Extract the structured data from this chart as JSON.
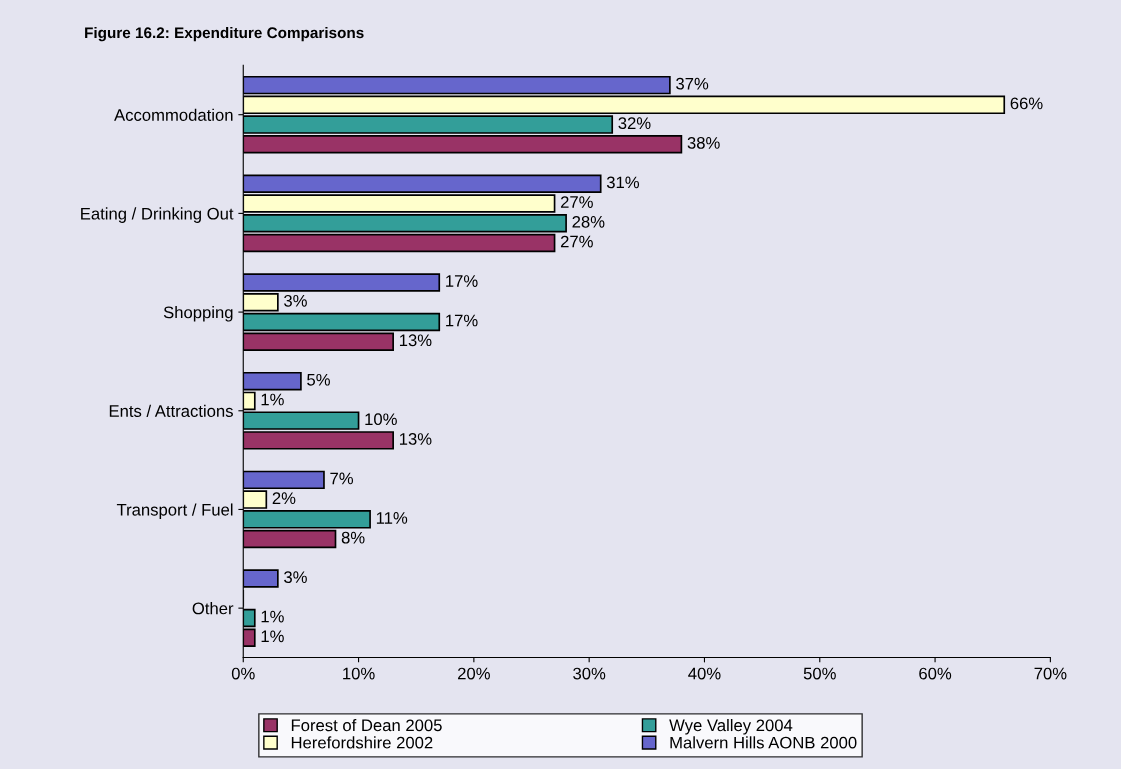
{
  "chart_data": {
    "type": "bar",
    "orientation": "horizontal",
    "title": "Figure 16.2: Expenditure Comparisons",
    "categories": [
      "Accommodation",
      "Eating / Drinking Out",
      "Shopping",
      "Ents / Attractions",
      "Transport / Fuel",
      "Other"
    ],
    "series": [
      {
        "name": "Forest of Dean 2005",
        "color": "#993366",
        "values": [
          38,
          27,
          13,
          13,
          8,
          1
        ],
        "value_labels": [
          "38%",
          "27%",
          "13%",
          "13%",
          "8%",
          "1%"
        ]
      },
      {
        "name": "Wye Valley 2004",
        "color": "#339e99",
        "values": [
          32,
          28,
          17,
          10,
          11,
          1
        ],
        "value_labels": [
          "32%",
          "28%",
          "17%",
          "10%",
          "11%",
          "1%"
        ]
      },
      {
        "name": "Herefordshire 2002",
        "color": "#ffffcc",
        "values": [
          66,
          27,
          3,
          1,
          2,
          null
        ],
        "value_labels": [
          "66%",
          "27%",
          "3%",
          "1%",
          "2%",
          null
        ]
      },
      {
        "name": "Malvern Hills AONB 2000",
        "color": "#6666cc",
        "values": [
          37,
          31,
          17,
          5,
          7,
          3
        ],
        "value_labels": [
          "37%",
          "31%",
          "17%",
          "5%",
          "7%",
          "3%"
        ]
      }
    ],
    "xlim": [
      0,
      70
    ],
    "xticks": [
      {
        "value": 0,
        "label": "0%"
      },
      {
        "value": 10,
        "label": "10%"
      },
      {
        "value": 20,
        "label": "20%"
      },
      {
        "value": 30,
        "label": "30%"
      },
      {
        "value": 40,
        "label": "40%"
      },
      {
        "value": 50,
        "label": "50%"
      },
      {
        "value": 60,
        "label": "60%"
      },
      {
        "value": 70,
        "label": "70%"
      }
    ],
    "grid": false,
    "legend": "bottom"
  }
}
